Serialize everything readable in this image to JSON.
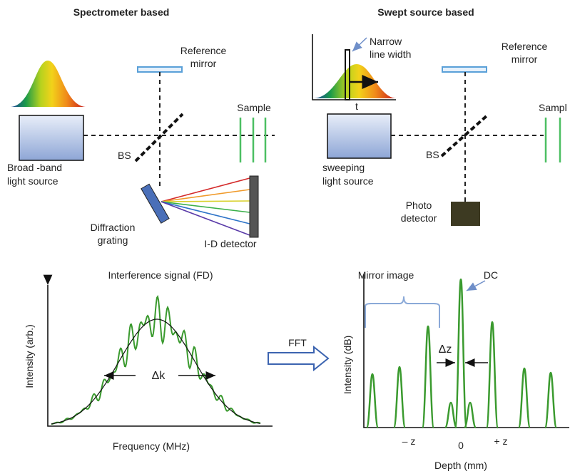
{
  "left": {
    "title": "Spectrometer based",
    "reference_mirror": [
      "Reference",
      "mirror"
    ],
    "sample": "Sample",
    "bs": "BS",
    "source": [
      "Broad -band",
      "light source"
    ],
    "grating": [
      "Diffraction",
      "grating"
    ],
    "detector": "I-D detector"
  },
  "right": {
    "title": "Swept source based",
    "narrow": [
      "Narrow",
      "line width"
    ],
    "t": "t",
    "reference_mirror": [
      "Reference",
      "mirror"
    ],
    "sample": "Sampl",
    "bs": "BS",
    "source": [
      "sweeping",
      "light source"
    ],
    "detector": [
      "Photo",
      "detector"
    ]
  },
  "plot_left": {
    "title": "Interference signal (FD)",
    "y_label": "Intensity  (arb.)",
    "delta": "Δk",
    "x_label": "Frequency (MHz)"
  },
  "fft": "FFT",
  "plot_right": {
    "mirror_image": "Mirror image",
    "dc": "DC",
    "y_label": "Intensity  (dB)",
    "delta": "Δz",
    "x_ticks": [
      "– z",
      "0",
      "+ z"
    ],
    "x_label": "Depth (mm)"
  }
}
